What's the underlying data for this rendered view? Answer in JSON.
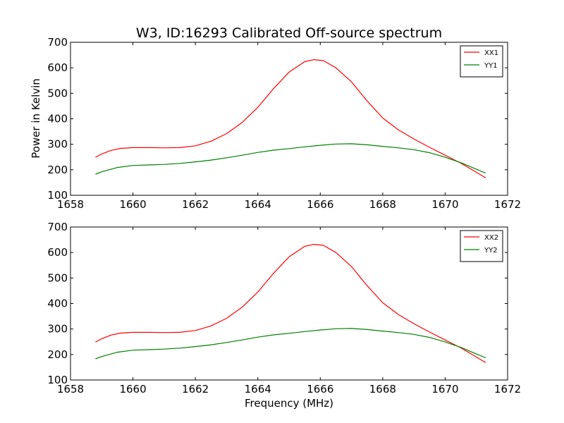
{
  "figure": {
    "title": "W3, ID:16293 Calibrated Off-source spectrum",
    "ylabel": "Power in Kelvin",
    "xlabel": "Frequency (MHz)"
  },
  "colors": {
    "xx": "#ff0000",
    "yy": "#008000",
    "axes": "#000000",
    "background": "#ffffff"
  },
  "chart_data": [
    {
      "type": "line",
      "title": "W3, ID:16293 Calibrated Off-source spectrum",
      "xlabel": "",
      "ylabel": "Power in Kelvin",
      "xlim": [
        1658,
        1672
      ],
      "ylim": [
        100,
        700
      ],
      "xticks": [
        1658,
        1660,
        1662,
        1664,
        1666,
        1668,
        1670,
        1672
      ],
      "yticks": [
        100,
        200,
        300,
        400,
        500,
        600,
        700
      ],
      "grid": false,
      "legend_position": "top-right",
      "series": [
        {
          "name": "XX1",
          "color": "#ff0000",
          "x": [
            1658.8,
            1659.0,
            1659.3,
            1659.6,
            1660.0,
            1660.5,
            1661.0,
            1661.5,
            1662.0,
            1662.5,
            1663.0,
            1663.5,
            1664.0,
            1664.5,
            1665.0,
            1665.5,
            1665.8,
            1666.1,
            1666.5,
            1667.0,
            1667.5,
            1668.0,
            1668.5,
            1669.0,
            1669.5,
            1670.0,
            1670.5,
            1671.0,
            1671.3
          ],
          "y": [
            249,
            262,
            276,
            284,
            287,
            287,
            286,
            287,
            294,
            312,
            342,
            386,
            445,
            518,
            583,
            624,
            632,
            628,
            600,
            545,
            470,
            403,
            357,
            321,
            288,
            257,
            226,
            190,
            168
          ]
        },
        {
          "name": "YY1",
          "color": "#008000",
          "x": [
            1658.8,
            1659.0,
            1659.5,
            1660.0,
            1660.5,
            1661.0,
            1661.5,
            1662.0,
            1662.5,
            1663.0,
            1663.5,
            1664.0,
            1664.5,
            1665.0,
            1665.5,
            1666.0,
            1666.5,
            1667.0,
            1667.5,
            1668.0,
            1668.5,
            1669.0,
            1669.5,
            1670.0,
            1670.5,
            1671.0,
            1671.3
          ],
          "y": [
            183,
            192,
            209,
            217,
            219,
            221,
            225,
            231,
            238,
            247,
            257,
            268,
            277,
            283,
            290,
            296,
            301,
            302,
            298,
            292,
            286,
            279,
            267,
            249,
            228,
            202,
            187
          ]
        }
      ]
    },
    {
      "type": "line",
      "title": "",
      "xlabel": "Frequency (MHz)",
      "ylabel": "",
      "xlim": [
        1658,
        1672
      ],
      "ylim": [
        100,
        700
      ],
      "xticks": [
        1658,
        1660,
        1662,
        1664,
        1666,
        1668,
        1670,
        1672
      ],
      "yticks": [
        100,
        200,
        300,
        400,
        500,
        600,
        700
      ],
      "grid": false,
      "legend_position": "top-right",
      "series": [
        {
          "name": "XX2",
          "color": "#ff0000",
          "x": [
            1658.8,
            1659.0,
            1659.3,
            1659.6,
            1660.0,
            1660.5,
            1661.0,
            1661.5,
            1662.0,
            1662.5,
            1663.0,
            1663.5,
            1664.0,
            1664.5,
            1665.0,
            1665.5,
            1665.8,
            1666.1,
            1666.5,
            1667.0,
            1667.5,
            1668.0,
            1668.5,
            1669.0,
            1669.5,
            1670.0,
            1670.5,
            1671.0,
            1671.3
          ],
          "y": [
            249,
            262,
            276,
            284,
            287,
            287,
            286,
            287,
            294,
            312,
            342,
            386,
            445,
            518,
            583,
            624,
            632,
            628,
            600,
            545,
            470,
            403,
            357,
            321,
            288,
            257,
            226,
            190,
            168
          ]
        },
        {
          "name": "YY2",
          "color": "#008000",
          "x": [
            1658.8,
            1659.0,
            1659.5,
            1660.0,
            1660.5,
            1661.0,
            1661.5,
            1662.0,
            1662.5,
            1663.0,
            1663.5,
            1664.0,
            1664.5,
            1665.0,
            1665.5,
            1666.0,
            1666.5,
            1667.0,
            1667.5,
            1668.0,
            1668.5,
            1669.0,
            1669.5,
            1670.0,
            1670.5,
            1671.0,
            1671.3
          ],
          "y": [
            183,
            192,
            209,
            217,
            219,
            221,
            225,
            231,
            238,
            247,
            257,
            268,
            277,
            283,
            290,
            296,
            301,
            302,
            298,
            292,
            286,
            279,
            267,
            249,
            228,
            202,
            187
          ]
        }
      ]
    }
  ]
}
